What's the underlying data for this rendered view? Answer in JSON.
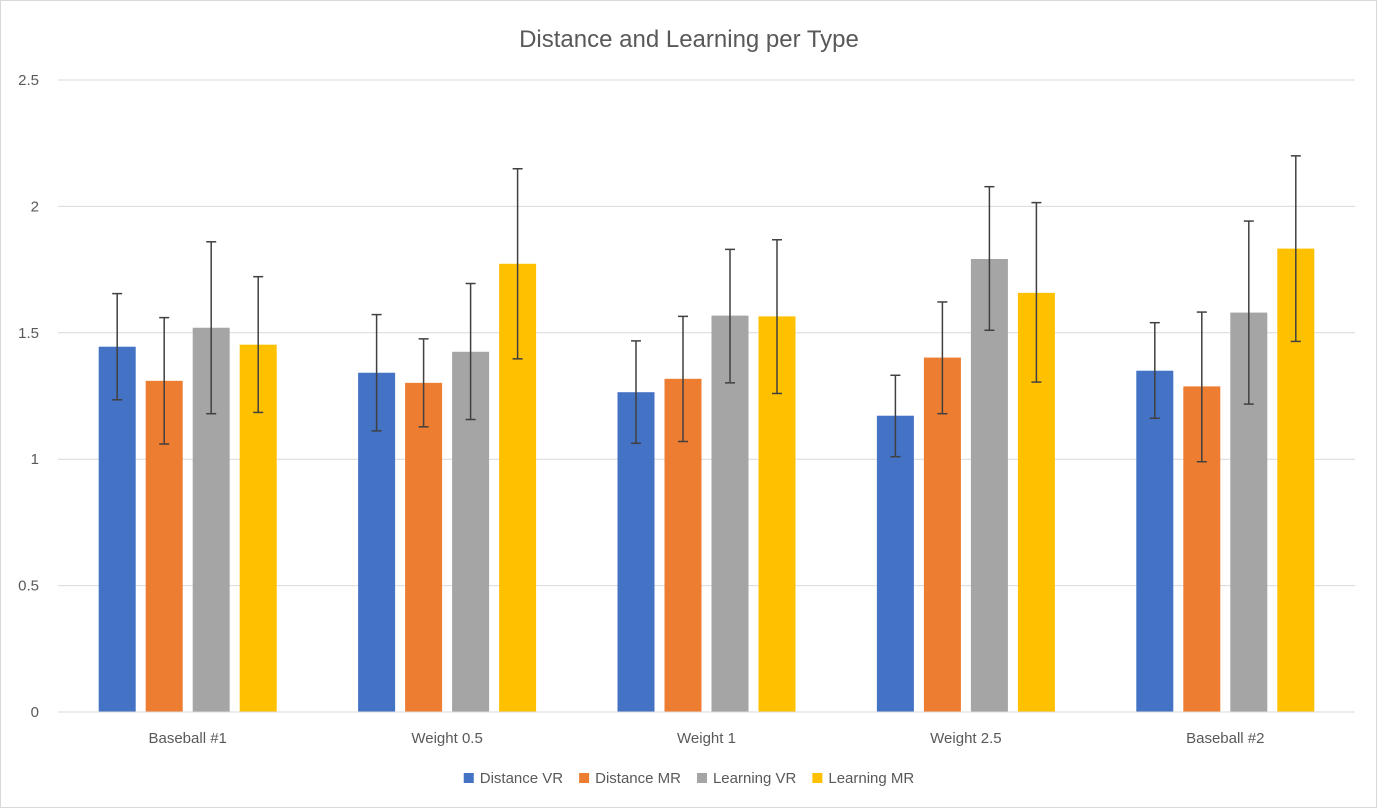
{
  "chart_data": {
    "type": "bar",
    "title": "Distance and Learning per Type",
    "xlabel": "",
    "ylabel": "",
    "ylim": [
      0,
      2.5
    ],
    "yticks": [
      "0",
      "0.5",
      "1",
      "1.5",
      "2",
      "2.5"
    ],
    "grid": true,
    "legend_position": "bottom",
    "categories": [
      "Baseball #1",
      "Weight 0.5",
      "Weight 1",
      "Weight 2.5",
      "Baseball #2"
    ],
    "series": [
      {
        "name": "Distance VR",
        "color": "#4472C4",
        "values": [
          1.445,
          1.342,
          1.265,
          1.172,
          1.35
        ],
        "error_low": [
          1.235,
          1.112,
          1.063,
          1.01,
          1.162
        ],
        "error_high": [
          1.655,
          1.572,
          1.468,
          1.332,
          1.54
        ]
      },
      {
        "name": "Distance MR",
        "color": "#ED7D31",
        "values": [
          1.31,
          1.302,
          1.318,
          1.402,
          1.288
        ],
        "error_low": [
          1.06,
          1.128,
          1.07,
          1.18,
          0.99
        ],
        "error_high": [
          1.56,
          1.476,
          1.565,
          1.622,
          1.582
        ]
      },
      {
        "name": "Learning VR",
        "color": "#A5A5A5",
        "values": [
          1.52,
          1.425,
          1.568,
          1.792,
          1.58
        ],
        "error_low": [
          1.18,
          1.157,
          1.302,
          1.51,
          1.218
        ],
        "error_high": [
          1.86,
          1.695,
          1.83,
          2.078,
          1.942
        ]
      },
      {
        "name": "Learning MR",
        "color": "#FFC000",
        "values": [
          1.453,
          1.773,
          1.565,
          1.658,
          1.833
        ],
        "error_low": [
          1.185,
          1.397,
          1.26,
          1.305,
          1.466
        ],
        "error_high": [
          1.722,
          2.149,
          1.868,
          2.015,
          2.2
        ]
      }
    ]
  }
}
